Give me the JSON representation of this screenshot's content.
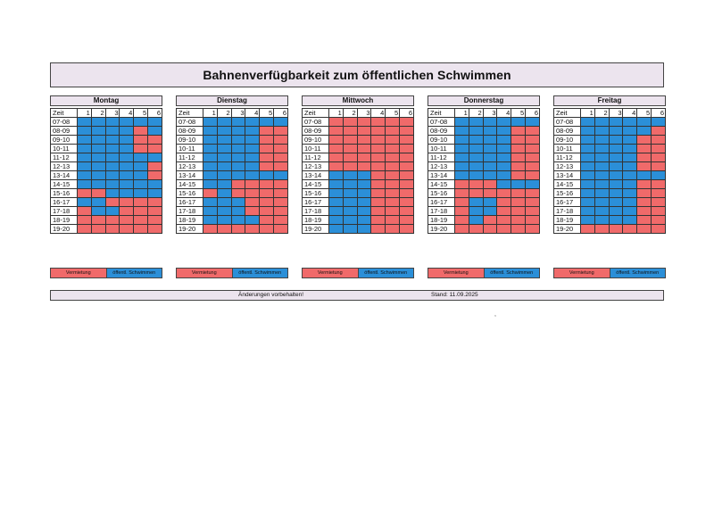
{
  "title": "Bahnenverfügbarkeit zum öffentlichen Schwimmen",
  "zeit_label": "Zeit",
  "lanes": [
    "1",
    "2",
    "3",
    "4",
    "5",
    "6"
  ],
  "times": [
    "07-08",
    "08-09",
    "09-10",
    "10-11",
    "11-12",
    "12-13",
    "13-14",
    "14-15",
    "15-16",
    "16-17",
    "17-18",
    "18-19",
    "19-20"
  ],
  "legend": {
    "red_label": "Vermietung",
    "blue_label": "öffentl. Schwimmen",
    "red_color": "#f06a6a",
    "blue_color": "#2b8fd8"
  },
  "days": [
    {
      "name": "Montag",
      "rows": [
        "BBBBBB",
        "BBBBRB",
        "BBBBRR",
        "BBBBRR",
        "BBBBBB",
        "BBBBBR",
        "BBBBBR",
        "BBBBBB",
        "RRBBBB",
        "BBRRRR",
        "RBBRRR",
        "RRRRRR",
        "RRRRRR"
      ]
    },
    {
      "name": "Dienstag",
      "rows": [
        "BBBBBB",
        "BBBBRR",
        "BBBBRR",
        "BBBBRR",
        "BBBBRR",
        "BBBBRR",
        "BBBBBB",
        "BBRRRR",
        "RBRRRR",
        "BBBRRR",
        "BBBRRR",
        "BBBBRR",
        "RRRRRR"
      ]
    },
    {
      "name": "Mittwoch",
      "rows": [
        "RRRRRR",
        "RRRRRR",
        "RRRRRR",
        "RRRRRR",
        "RRRRRR",
        "RRRRRR",
        "BBBRRR",
        "BBBRRR",
        "BBBRRR",
        "BBBRRR",
        "BBBRRR",
        "BBBRRR",
        "BBBRRR"
      ]
    },
    {
      "name": "Donnerstag",
      "rows": [
        "BBBBBB",
        "BBBBRR",
        "BBBBRR",
        "BBBBRR",
        "BBBBRR",
        "BBBBRR",
        "BBBBRR",
        "RRRBBB",
        "RRRRRR",
        "RBBRRR",
        "RBBRRR",
        "RBRRRR",
        "RRRRRR"
      ]
    },
    {
      "name": "Freitag",
      "rows": [
        "BBBBBB",
        "BBBBBR",
        "BBBBRR",
        "BBBBRR",
        "BBBBRR",
        "BBBBRR",
        "BBBBBB",
        "BBBBRR",
        "BBBBRR",
        "BBBBRR",
        "BBBBRR",
        "BBBBRR",
        "RRRRRR"
      ]
    }
  ],
  "footer": {
    "note": "Änderungen vorbehalten!",
    "stand": "Stand: 11.09.2025"
  },
  "stray_mark": ","
}
